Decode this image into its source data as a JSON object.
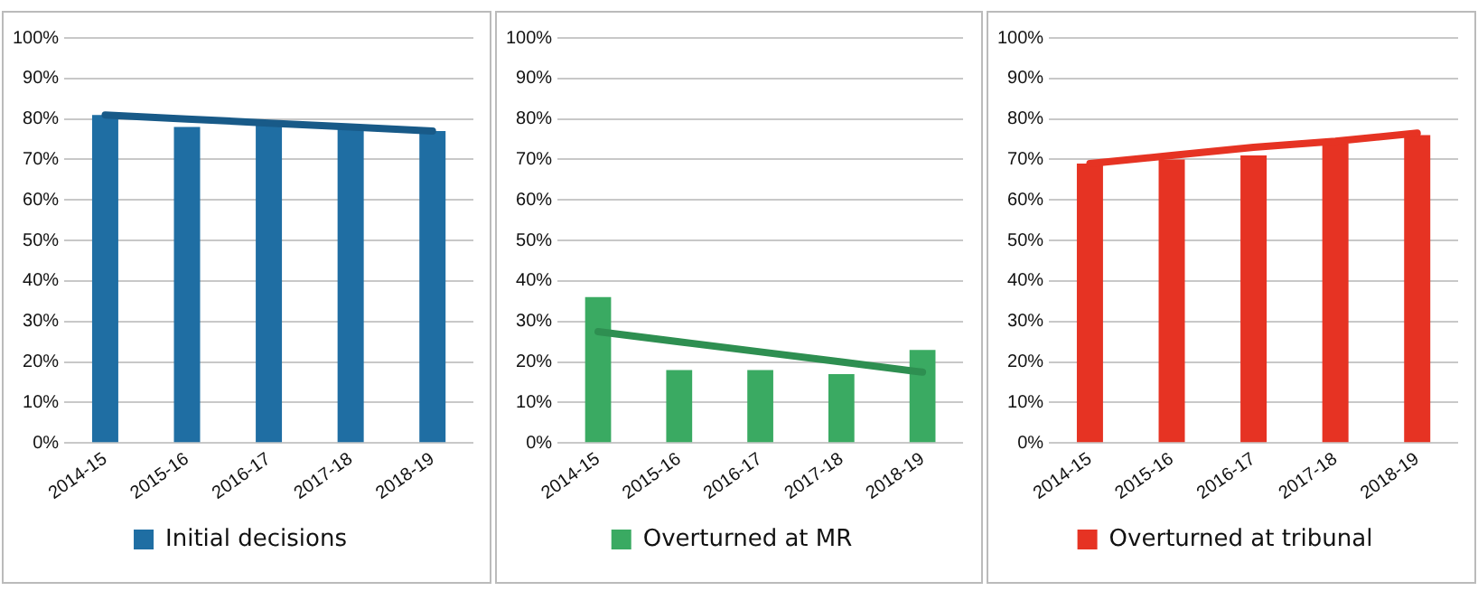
{
  "chart_data": [
    {
      "type": "bar",
      "categories": [
        "2014-15",
        "2015-16",
        "2016-17",
        "2017-18",
        "2018-19"
      ],
      "series": [
        {
          "name": "Initial decisions",
          "color": "#1f6ea3",
          "values": [
            81,
            78,
            79,
            78,
            77
          ]
        },
        {
          "type": "line",
          "color": "#185a88",
          "values": [
            81,
            80,
            79,
            78,
            77
          ]
        }
      ],
      "ylim": [
        0,
        100
      ],
      "yticks": [
        {
          "value": 0,
          "label": "0%"
        },
        {
          "value": 10,
          "label": "10%"
        },
        {
          "value": 20,
          "label": "20%"
        },
        {
          "value": 30,
          "label": "30%"
        },
        {
          "value": 40,
          "label": "40%"
        },
        {
          "value": 50,
          "label": "50%"
        },
        {
          "value": 60,
          "label": "60%"
        },
        {
          "value": 70,
          "label": "70%"
        },
        {
          "value": 80,
          "label": "80%"
        },
        {
          "value": 90,
          "label": "90%"
        },
        {
          "value": 100,
          "label": "100%"
        }
      ],
      "grid": "y",
      "legend": "bottom"
    },
    {
      "type": "bar",
      "categories": [
        "2014-15",
        "2015-16",
        "2016-17",
        "2017-18",
        "2018-19"
      ],
      "series": [
        {
          "name": "Overturned at MR",
          "color": "#3aaa62",
          "values": [
            36,
            18,
            18,
            17,
            23
          ]
        },
        {
          "type": "line",
          "color": "#2e8f51",
          "values": [
            27.5,
            25,
            22.5,
            20,
            17.5
          ]
        }
      ],
      "ylim": [
        0,
        100
      ],
      "yticks": [
        {
          "value": 0,
          "label": "0%"
        },
        {
          "value": 10,
          "label": "10%"
        },
        {
          "value": 20,
          "label": "20%"
        },
        {
          "value": 30,
          "label": "30%"
        },
        {
          "value": 40,
          "label": "40%"
        },
        {
          "value": 50,
          "label": "50%"
        },
        {
          "value": 60,
          "label": "60%"
        },
        {
          "value": 70,
          "label": "70%"
        },
        {
          "value": 80,
          "label": "80%"
        },
        {
          "value": 90,
          "label": "90%"
        },
        {
          "value": 100,
          "label": "100%"
        }
      ],
      "grid": "y",
      "legend": "bottom"
    },
    {
      "type": "bar",
      "categories": [
        "2014-15",
        "2015-16",
        "2016-17",
        "2017-18",
        "2018-19"
      ],
      "series": [
        {
          "name": "Overturned at tribunal",
          "color": "#e63323",
          "values": [
            69,
            70,
            71,
            74,
            76
          ]
        },
        {
          "type": "line",
          "color": "#e63323",
          "values": [
            69,
            71,
            73,
            74.5,
            76.5
          ]
        }
      ],
      "ylim": [
        0,
        100
      ],
      "yticks": [
        {
          "value": 0,
          "label": "0%"
        },
        {
          "value": 10,
          "label": "10%"
        },
        {
          "value": 20,
          "label": "20%"
        },
        {
          "value": 30,
          "label": "30%"
        },
        {
          "value": 40,
          "label": "40%"
        },
        {
          "value": 50,
          "label": "50%"
        },
        {
          "value": 60,
          "label": "60%"
        },
        {
          "value": 70,
          "label": "70%"
        },
        {
          "value": 80,
          "label": "80%"
        },
        {
          "value": 90,
          "label": "90%"
        },
        {
          "value": 100,
          "label": "100%"
        }
      ],
      "grid": "y",
      "legend": "bottom"
    }
  ]
}
